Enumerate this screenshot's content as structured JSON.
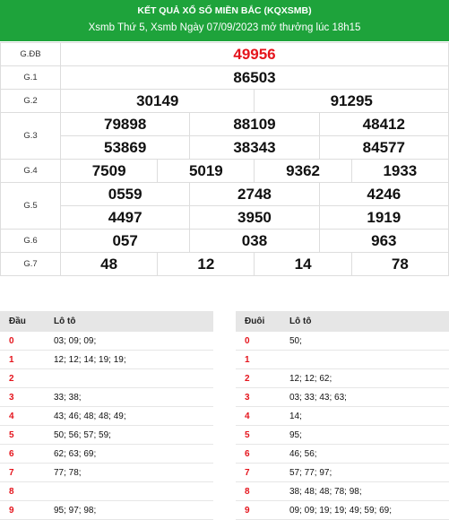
{
  "header": {
    "title": "KẾT QUẢ XỔ SỐ MIỀN BẮC (KQXSMB)",
    "subtitle": "Xsmb Thứ 5, Xsmb Ngày 07/09/2023 mở thưởng lúc 18h15"
  },
  "prizes": [
    {
      "label": "G.ĐB",
      "numbers": [
        "49956"
      ]
    },
    {
      "label": "G.1",
      "numbers": [
        "86503"
      ]
    },
    {
      "label": "G.2",
      "numbers": [
        "30149",
        "91295"
      ]
    },
    {
      "label": "G.3",
      "numbers": [
        "79898",
        "88109",
        "48412",
        "53869",
        "38343",
        "84577"
      ]
    },
    {
      "label": "G.4",
      "numbers": [
        "7509",
        "5019",
        "9362",
        "1933"
      ]
    },
    {
      "label": "G.5",
      "numbers": [
        "0559",
        "2748",
        "4246",
        "4497",
        "3950",
        "1919"
      ]
    },
    {
      "label": "G.6",
      "numbers": [
        "057",
        "038",
        "963"
      ]
    },
    {
      "label": "G.7",
      "numbers": [
        "48",
        "12",
        "14",
        "78"
      ]
    }
  ],
  "loto_head": {
    "col1": "Đầu",
    "col2": "Lô tô",
    "rows": [
      {
        "k": "0",
        "v": "03; 09; 09;"
      },
      {
        "k": "1",
        "v": "12; 12; 14; 19; 19;"
      },
      {
        "k": "2",
        "v": ""
      },
      {
        "k": "3",
        "v": "33; 38;"
      },
      {
        "k": "4",
        "v": "43; 46; 48; 48; 49;"
      },
      {
        "k": "5",
        "v": "50; 56; 57; 59;"
      },
      {
        "k": "6",
        "v": "62; 63; 69;"
      },
      {
        "k": "7",
        "v": "77; 78;"
      },
      {
        "k": "8",
        "v": ""
      },
      {
        "k": "9",
        "v": "95; 97; 98;"
      }
    ]
  },
  "loto_tail": {
    "col1": "Đuôi",
    "col2": "Lô tô",
    "rows": [
      {
        "k": "0",
        "v": "50;"
      },
      {
        "k": "1",
        "v": ""
      },
      {
        "k": "2",
        "v": "12; 12; 62;"
      },
      {
        "k": "3",
        "v": "03; 33; 43; 63;"
      },
      {
        "k": "4",
        "v": "14;"
      },
      {
        "k": "5",
        "v": "95;"
      },
      {
        "k": "6",
        "v": "46; 56;"
      },
      {
        "k": "7",
        "v": "57; 77; 97;"
      },
      {
        "k": "8",
        "v": "38; 48; 48; 78; 98;"
      },
      {
        "k": "9",
        "v": "09; 09; 19; 19; 49; 59; 69;"
      }
    ]
  }
}
